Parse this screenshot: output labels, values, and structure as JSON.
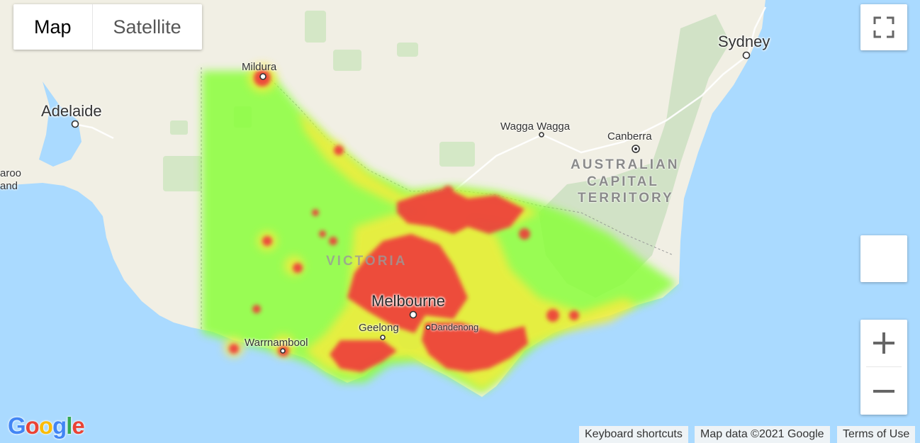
{
  "map_type": {
    "map_label": "Map",
    "satellite_label": "Satellite",
    "selected": "Map"
  },
  "controls": {
    "fullscreen_icon": "fullscreen-icon",
    "pegman_icon": "pegman-icon",
    "zoom_in_icon": "plus-icon",
    "zoom_out_icon": "minus-icon"
  },
  "labels": {
    "sydney": "Sydney",
    "adelaide": "Adelaide",
    "mildura": "Mildura",
    "wagga": "Wagga Wagga",
    "canberra": "Canberra",
    "act_line1": "AUSTRALIAN",
    "act_line2": "CAPITAL",
    "act_line3": "TERRITORY",
    "victoria": "VICTORIA",
    "melbourne": "Melbourne",
    "geelong": "Geelong",
    "dandenong": "Dandenong",
    "warrnambool": "Warrnambool",
    "naracoorte_fragment": "aroo",
    "naracoorte_fragment2": "and"
  },
  "heatmap": {
    "legend": "none",
    "colors": {
      "low": "#7fff00",
      "mid": "#ffff00",
      "high": "#ff0000"
    }
  },
  "footer": {
    "keyboard": "Keyboard shortcuts",
    "mapdata": "Map data ©2021 Google",
    "terms": "Terms of Use"
  },
  "logo": {
    "text": "Google",
    "letters": [
      "G",
      "o",
      "o",
      "g",
      "l",
      "e"
    ],
    "colors": [
      "#4285f4",
      "#ea4335",
      "#fbbc05",
      "#4285f4",
      "#34a853",
      "#ea4335"
    ]
  },
  "colors": {
    "land": "#f1efe4",
    "water": "#aadaff",
    "vegetation": "#cfe6c1",
    "heat_low": "#8aff3a",
    "heat_mid": "#ffea3a",
    "heat_high": "#ee3a3a"
  }
}
